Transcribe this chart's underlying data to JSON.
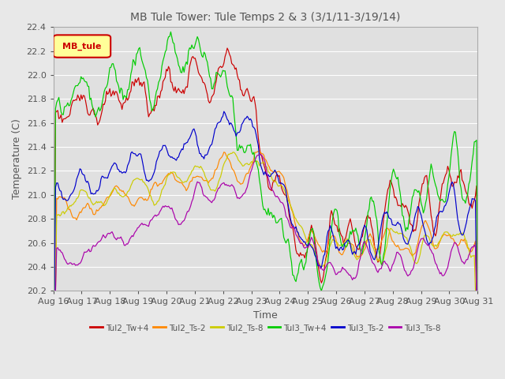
{
  "title": "MB Tule Tower: Tule Temps 2 & 3 (3/1/11-3/19/14)",
  "xlabel": "Time",
  "ylabel": "Temperature (C)",
  "ylim": [
    20.2,
    22.4
  ],
  "yticks": [
    20.2,
    20.4,
    20.6,
    20.8,
    21.0,
    21.2,
    21.4,
    21.6,
    21.8,
    22.0,
    22.2,
    22.4
  ],
  "xtick_labels": [
    "Aug 16",
    "Aug 17",
    "Aug 18",
    "Aug 19",
    "Aug 20",
    "Aug 21",
    "Aug 22",
    "Aug 23",
    "Aug 24",
    "Aug 25",
    "Aug 26",
    "Aug 27",
    "Aug 28",
    "Aug 29",
    "Aug 30",
    "Aug 31"
  ],
  "legend_box_label": "MB_tule",
  "series": [
    {
      "label": "Tul2_Tw+4",
      "color": "#cc0000"
    },
    {
      "label": "Tul2_Ts-2",
      "color": "#ff8800"
    },
    {
      "label": "Tul2_Ts-8",
      "color": "#cccc00"
    },
    {
      "label": "Tul3_Tw+4",
      "color": "#00cc00"
    },
    {
      "label": "Tul3_Ts-2",
      "color": "#0000cc"
    },
    {
      "label": "Tul3_Ts-8",
      "color": "#aa00aa"
    }
  ],
  "plot_bg_color": "#e0e0e0",
  "fig_bg_color": "#e8e8e8",
  "grid_color": "#ffffff",
  "title_color": "#555555",
  "label_color": "#555555"
}
